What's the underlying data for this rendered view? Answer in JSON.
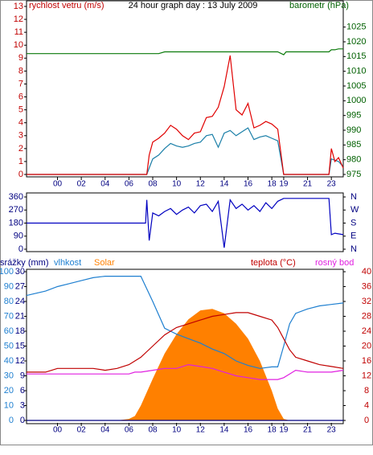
{
  "chart_data": [
    {
      "type": "line",
      "title": "24 hour graph day : 13 July 2009",
      "ylabel": "rychlost vetru (m/s)",
      "y2label": "barometr (hPa)",
      "xlim": [
        -2.6,
        24
      ],
      "xticks": [
        {
          "value": 0,
          "label": "00"
        },
        {
          "value": 2,
          "label": "02"
        },
        {
          "value": 4,
          "label": "04"
        },
        {
          "value": 6,
          "label": "06"
        },
        {
          "value": 8,
          "label": "08"
        },
        10,
        12,
        14,
        16,
        18,
        19,
        21,
        23
      ],
      "ylim": [
        0,
        13
      ],
      "yticks": [
        0,
        1,
        2,
        3,
        4,
        5,
        6,
        7,
        8,
        9,
        10,
        11,
        12,
        13
      ],
      "y2lim": [
        975,
        1032
      ],
      "y2ticks": [
        975,
        980,
        985,
        990,
        995,
        1000,
        1005,
        1010,
        1015,
        1020,
        1025
      ],
      "x": [
        -2.6,
        7.5,
        7.7,
        8,
        8.5,
        9,
        9.5,
        10,
        10.5,
        11,
        11.5,
        12,
        12.5,
        13,
        13.5,
        14,
        14.5,
        15,
        15.5,
        16,
        16.5,
        17,
        17.5,
        18,
        18.5,
        19,
        19.2,
        22.8,
        23,
        23.3,
        23.6,
        24
      ],
      "series": [
        {
          "color": "#1a7fa8",
          "values": [
            0,
            0,
            0.5,
            1.2,
            1.5,
            2.0,
            2.4,
            2.2,
            2.1,
            2.2,
            2.4,
            2.5,
            3.0,
            3.1,
            2.1,
            3.2,
            3.4,
            3.0,
            3.3,
            3.6,
            2.7,
            2.9,
            3.0,
            2.8,
            2.6,
            0,
            0,
            0,
            1.2,
            1.1,
            1.0,
            0.6
          ]
        },
        {
          "color": "#e00000",
          "values": [
            0,
            0,
            1.5,
            2.5,
            2.8,
            3.2,
            3.8,
            3.5,
            3.0,
            2.7,
            3.2,
            3.3,
            4.4,
            4.5,
            5.2,
            6.8,
            9.2,
            5.0,
            4.6,
            5.5,
            3.6,
            3.8,
            4.1,
            3.9,
            3.5,
            0,
            0,
            0,
            2,
            1,
            1.3,
            0.5
          ]
        },
        {
          "color": "#0a7a0a",
          "axis": "y2",
          "values": [
            1016,
            1016,
            1016,
            1016,
            1016,
            1016.6,
            1016.6,
            1016.6,
            1016.6,
            1016.6,
            1016.6,
            1016.6,
            1016.6,
            1016.6,
            1016.6,
            1016.6,
            1016.6,
            1016.6,
            1016.6,
            1016.6,
            1016.6,
            1016.6,
            1016.6,
            1016.6,
            1016.6,
            1015.6,
            1016.6,
            1016.6,
            1017.3,
            1017.3,
            1017.6,
            1017.6
          ]
        }
      ]
    },
    {
      "type": "line",
      "xlim": [
        -2.6,
        24
      ],
      "ylim": [
        0,
        360
      ],
      "yticks": [
        0,
        90,
        180,
        270,
        360
      ],
      "y2lim": [
        0,
        360
      ],
      "y2ticks": [
        {
          "value": 0,
          "label": "N"
        },
        {
          "value": 90,
          "label": "E"
        },
        {
          "value": 180,
          "label": "S"
        },
        {
          "value": 270,
          "label": "W"
        },
        {
          "value": 360,
          "label": "N"
        }
      ],
      "x": [
        -2.6,
        7.4,
        7.5,
        7.7,
        8,
        8.5,
        9,
        9.5,
        10,
        10.5,
        11,
        11.5,
        12,
        12.5,
        13,
        13.5,
        14,
        14.5,
        15,
        15.5,
        16,
        16.5,
        17,
        17.5,
        18,
        18.5,
        19,
        19.2,
        22.8,
        23,
        23.3,
        24
      ],
      "series": [
        {
          "color": "#0000c0",
          "values": [
            180,
            180,
            340,
            60,
            250,
            230,
            260,
            280,
            240,
            270,
            290,
            250,
            300,
            310,
            260,
            330,
            10,
            340,
            280,
            310,
            270,
            300,
            260,
            320,
            280,
            330,
            350,
            350,
            350,
            100,
            110,
            100
          ]
        }
      ]
    },
    {
      "type": "line",
      "xlim": [
        -2.6,
        24
      ],
      "xticks": [
        {
          "value": 0,
          "label": "00"
        },
        {
          "value": 2,
          "label": "02"
        },
        {
          "value": 4,
          "label": "04"
        },
        {
          "value": 6,
          "label": "06"
        },
        {
          "value": 8,
          "label": "08"
        },
        10,
        12,
        14,
        16,
        18,
        19,
        21,
        23
      ],
      "ylim": [
        0,
        100
      ],
      "yticks": [
        0,
        10,
        20,
        30,
        40,
        50,
        60,
        70,
        80,
        90,
        100
      ],
      "y3lim": [
        0,
        30
      ],
      "y3ticks": [
        0,
        3,
        6,
        9,
        12,
        15,
        18,
        21,
        24,
        27,
        30
      ],
      "y2lim": [
        0,
        40
      ],
      "y2ticks": [
        0,
        4,
        8,
        12,
        16,
        20,
        24,
        28,
        32,
        36,
        40
      ],
      "x": [
        -2.6,
        -1,
        0,
        1,
        2,
        3,
        4,
        5,
        6,
        6.5,
        7,
        8,
        9,
        10,
        11,
        12,
        13,
        14,
        15,
        16,
        17,
        18,
        18.5,
        19,
        19.5,
        20,
        21,
        22,
        23,
        24
      ],
      "series": [
        {
          "name": "Solar",
          "type": "area",
          "color": "#ff8000",
          "values": [
            0,
            0,
            0,
            0,
            0,
            0,
            0,
            0,
            1,
            3,
            10,
            28,
            45,
            58,
            68,
            74,
            75,
            72,
            65,
            55,
            40,
            20,
            8,
            1,
            0,
            0,
            0,
            0,
            0,
            0
          ]
        },
        {
          "name": "srážky (mm)",
          "color": "#000080",
          "axis": "y3",
          "values": [
            0,
            0,
            0,
            0,
            0,
            0,
            0,
            0,
            0,
            0,
            0,
            0,
            0,
            0,
            0,
            0,
            0,
            0,
            0,
            0,
            0,
            0,
            0,
            0,
            0,
            0,
            0,
            0,
            0,
            0
          ]
        },
        {
          "name": "vlhkost",
          "color": "#1e7fd0",
          "values": [
            84,
            87,
            90,
            92,
            94,
            96,
            97,
            97,
            97,
            97,
            97,
            80,
            62,
            58,
            55,
            52,
            48,
            45,
            40,
            37,
            35,
            36,
            36,
            50,
            65,
            72,
            75,
            77,
            78,
            79
          ]
        },
        {
          "name": "teplota (°C)",
          "color": "#c00000",
          "axis": "y2",
          "values": [
            13,
            13,
            14,
            14,
            14,
            14,
            13.5,
            14,
            15,
            16,
            17,
            20,
            23,
            25,
            26,
            27,
            28,
            28.5,
            29,
            29,
            28,
            27,
            25,
            22,
            19,
            17,
            16,
            15,
            14.5,
            14
          ]
        },
        {
          "name": "rosný bod",
          "color": "#e020e0",
          "axis": "y2",
          "values": [
            12.5,
            12.5,
            12.5,
            12.5,
            12.5,
            12.5,
            12.5,
            12.5,
            12.5,
            13,
            13,
            13.5,
            14,
            14,
            15,
            14.5,
            14,
            13,
            12,
            11.5,
            11,
            11,
            11,
            11.5,
            12.5,
            13.5,
            13,
            13,
            13,
            13.5
          ]
        }
      ]
    }
  ]
}
